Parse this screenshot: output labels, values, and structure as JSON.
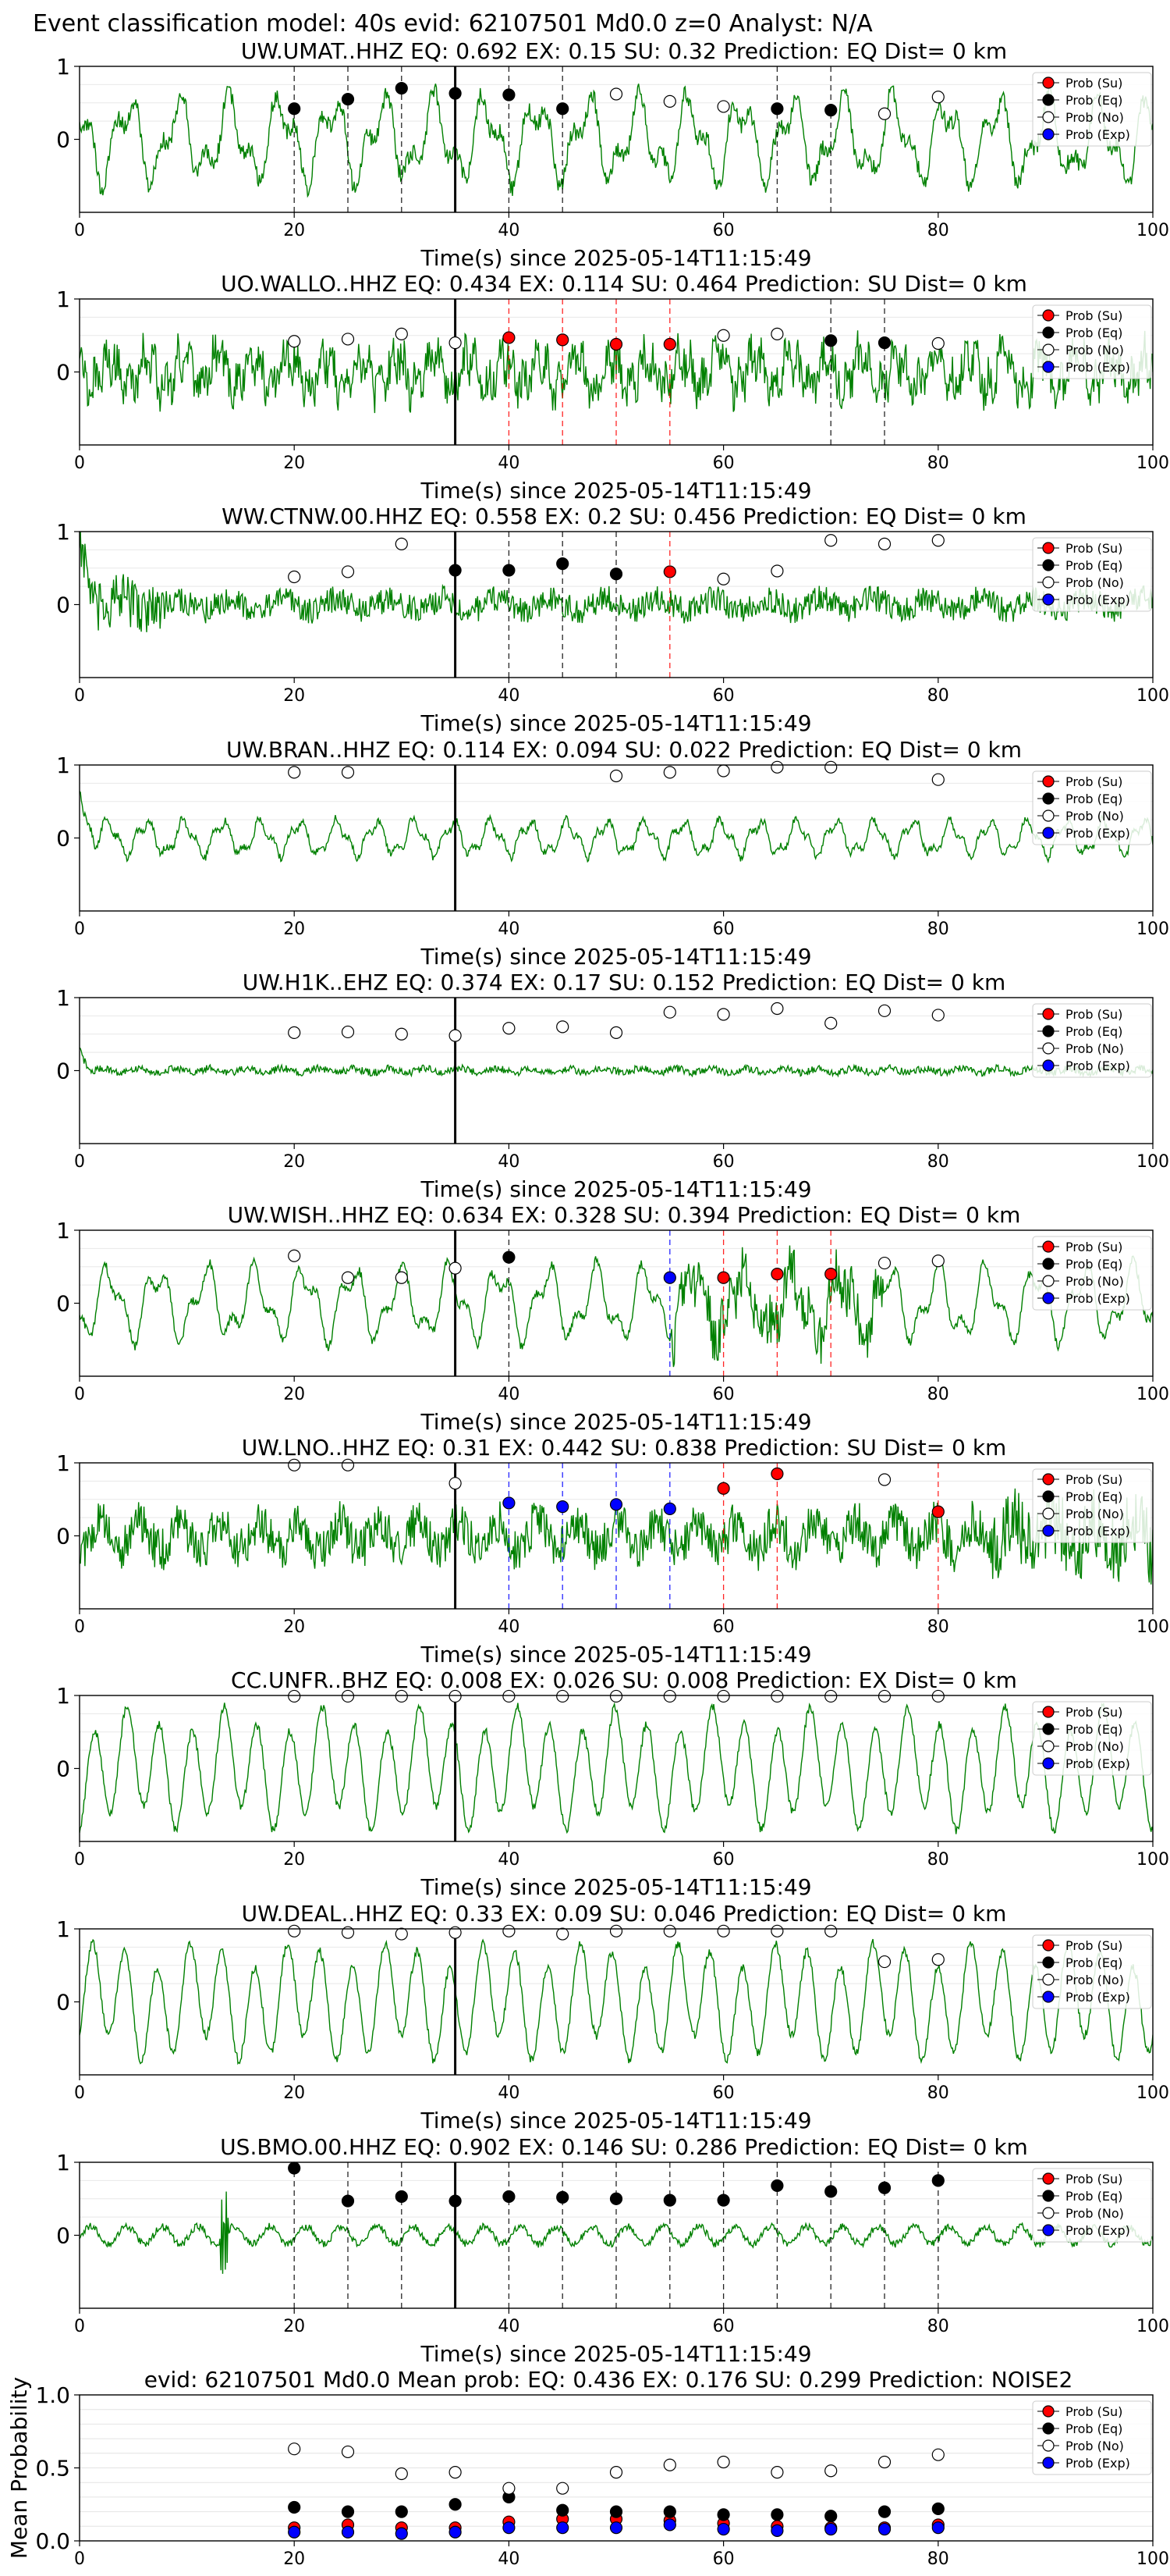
{
  "header": {
    "title": "Event classification model: 40s evid: 62107501 Md0.0 z=0 Analyst: N/A"
  },
  "colors": {
    "su": "#ff0000",
    "eq": "#000000",
    "no": "#ffffff",
    "exp": "#0000ff",
    "waveform": "#008000",
    "pick": "#000000"
  },
  "legend": [
    "Prob (Su)",
    "Prob (Eq)",
    "Prob (No)",
    "Prob (Exp)"
  ],
  "chart_data": [
    {
      "type": "line",
      "title": "UW.UMAT..HHZ   EQ: 0.692  EX: 0.15  SU: 0.32   Prediction: EQ    Dist= 0 km",
      "xlabel": "Time(s) since 2025-05-14T11:15:49",
      "xlim": [
        0,
        100
      ],
      "ylim": [
        -1,
        1
      ],
      "xticks": [
        0,
        20,
        40,
        60,
        80,
        100
      ],
      "yticks": [
        1,
        0
      ],
      "pick_time": 35,
      "legend_position": "upper right",
      "waveform": {
        "color": "green",
        "character": "lowfreq"
      },
      "points": [
        {
          "t": 20,
          "cls": "eq",
          "p": 0.42
        },
        {
          "t": 25,
          "cls": "eq",
          "p": 0.55
        },
        {
          "t": 30,
          "cls": "eq",
          "p": 0.7
        },
        {
          "t": 35,
          "cls": "eq",
          "p": 0.63
        },
        {
          "t": 40,
          "cls": "eq",
          "p": 0.61
        },
        {
          "t": 45,
          "cls": "eq",
          "p": 0.42
        },
        {
          "t": 50,
          "cls": "no",
          "p": 0.62
        },
        {
          "t": 55,
          "cls": "no",
          "p": 0.52
        },
        {
          "t": 60,
          "cls": "no",
          "p": 0.45
        },
        {
          "t": 65,
          "cls": "eq",
          "p": 0.42
        },
        {
          "t": 70,
          "cls": "eq",
          "p": 0.4
        },
        {
          "t": 75,
          "cls": "no",
          "p": 0.35
        },
        {
          "t": 80,
          "cls": "no",
          "p": 0.58
        }
      ]
    },
    {
      "type": "line",
      "title": "UO.WALLO..HHZ   EQ: 0.434  EX: 0.114  SU: 0.464   Prediction: SU    Dist= 0 km",
      "xlabel": "Time(s) since 2025-05-14T11:15:49",
      "xlim": [
        0,
        100
      ],
      "ylim": [
        -1,
        1
      ],
      "xticks": [
        0,
        20,
        40,
        60,
        80,
        100
      ],
      "yticks": [
        1,
        0
      ],
      "pick_time": 35,
      "legend_position": "upper right",
      "waveform": {
        "color": "green",
        "character": "mixed"
      },
      "points": [
        {
          "t": 20,
          "cls": "no",
          "p": 0.42
        },
        {
          "t": 25,
          "cls": "no",
          "p": 0.45
        },
        {
          "t": 30,
          "cls": "no",
          "p": 0.52
        },
        {
          "t": 35,
          "cls": "no",
          "p": 0.4
        },
        {
          "t": 40,
          "cls": "su",
          "p": 0.47
        },
        {
          "t": 45,
          "cls": "su",
          "p": 0.44
        },
        {
          "t": 50,
          "cls": "su",
          "p": 0.38
        },
        {
          "t": 55,
          "cls": "su",
          "p": 0.38
        },
        {
          "t": 60,
          "cls": "no",
          "p": 0.5
        },
        {
          "t": 65,
          "cls": "no",
          "p": 0.52
        },
        {
          "t": 70,
          "cls": "eq",
          "p": 0.43
        },
        {
          "t": 75,
          "cls": "eq",
          "p": 0.4
        },
        {
          "t": 80,
          "cls": "no",
          "p": 0.39
        }
      ]
    },
    {
      "type": "line",
      "title": "WW.CTNW.00.HHZ   EQ: 0.558  EX: 0.2  SU: 0.456   Prediction: EQ    Dist= 0 km",
      "xlabel": "Time(s) since 2025-05-14T11:15:49",
      "xlim": [
        0,
        100
      ],
      "ylim": [
        -1,
        1
      ],
      "xticks": [
        0,
        20,
        40,
        60,
        80,
        100
      ],
      "yticks": [
        1,
        0
      ],
      "pick_time": 35,
      "legend_position": "upper right",
      "waveform": {
        "color": "green",
        "character": "noise"
      },
      "points": [
        {
          "t": 20,
          "cls": "no",
          "p": 0.38
        },
        {
          "t": 25,
          "cls": "no",
          "p": 0.45
        },
        {
          "t": 30,
          "cls": "no",
          "p": 0.83
        },
        {
          "t": 35,
          "cls": "eq",
          "p": 0.47
        },
        {
          "t": 40,
          "cls": "eq",
          "p": 0.47
        },
        {
          "t": 45,
          "cls": "eq",
          "p": 0.56
        },
        {
          "t": 50,
          "cls": "eq",
          "p": 0.42
        },
        {
          "t": 55,
          "cls": "su",
          "p": 0.45
        },
        {
          "t": 60,
          "cls": "no",
          "p": 0.35
        },
        {
          "t": 65,
          "cls": "no",
          "p": 0.46
        },
        {
          "t": 70,
          "cls": "no",
          "p": 0.88
        },
        {
          "t": 75,
          "cls": "no",
          "p": 0.83
        },
        {
          "t": 80,
          "cls": "no",
          "p": 0.88
        }
      ]
    },
    {
      "type": "line",
      "title": "UW.BRAN..HHZ   EQ: 0.114  EX: 0.094  SU: 0.022   Prediction: EQ    Dist= 0 km",
      "xlabel": "Time(s) since 2025-05-14T11:15:49",
      "xlim": [
        0,
        100
      ],
      "ylim": [
        -1,
        1
      ],
      "xticks": [
        0,
        20,
        40,
        60,
        80,
        100
      ],
      "yticks": [
        1,
        0
      ],
      "pick_time": 35,
      "legend_position": "upper right",
      "waveform": {
        "color": "green",
        "character": "lowfreq-small"
      },
      "points": [
        {
          "t": 20,
          "cls": "no",
          "p": 0.9
        },
        {
          "t": 25,
          "cls": "no",
          "p": 0.9
        },
        {
          "t": 50,
          "cls": "no",
          "p": 0.85
        },
        {
          "t": 55,
          "cls": "no",
          "p": 0.9
        },
        {
          "t": 60,
          "cls": "no",
          "p": 0.92
        },
        {
          "t": 65,
          "cls": "no",
          "p": 0.97
        },
        {
          "t": 70,
          "cls": "no",
          "p": 0.97
        },
        {
          "t": 80,
          "cls": "no",
          "p": 0.8
        }
      ]
    },
    {
      "type": "line",
      "title": "UW.H1K..EHZ   EQ: 0.374  EX: 0.17  SU: 0.152   Prediction: EQ    Dist= 0 km",
      "xlabel": "Time(s) since 2025-05-14T11:15:49",
      "xlim": [
        0,
        100
      ],
      "ylim": [
        -1,
        1
      ],
      "xticks": [
        0,
        20,
        40,
        60,
        80,
        100
      ],
      "yticks": [
        1,
        0
      ],
      "pick_time": 35,
      "legend_position": "upper right",
      "waveform": {
        "color": "green",
        "character": "flat"
      },
      "points": [
        {
          "t": 20,
          "cls": "no",
          "p": 0.52
        },
        {
          "t": 25,
          "cls": "no",
          "p": 0.53
        },
        {
          "t": 30,
          "cls": "no",
          "p": 0.5
        },
        {
          "t": 35,
          "cls": "no",
          "p": 0.48
        },
        {
          "t": 40,
          "cls": "no",
          "p": 0.58
        },
        {
          "t": 45,
          "cls": "no",
          "p": 0.6
        },
        {
          "t": 50,
          "cls": "no",
          "p": 0.52
        },
        {
          "t": 55,
          "cls": "no",
          "p": 0.8
        },
        {
          "t": 60,
          "cls": "no",
          "p": 0.77
        },
        {
          "t": 65,
          "cls": "no",
          "p": 0.85
        },
        {
          "t": 70,
          "cls": "no",
          "p": 0.65
        },
        {
          "t": 75,
          "cls": "no",
          "p": 0.82
        },
        {
          "t": 80,
          "cls": "no",
          "p": 0.76
        }
      ]
    },
    {
      "type": "line",
      "title": "UW.WISH..HHZ   EQ: 0.634  EX: 0.328  SU: 0.394   Prediction: EQ    Dist= 0 km",
      "xlabel": "Time(s) since 2025-05-14T11:15:49",
      "xlim": [
        0,
        100
      ],
      "ylim": [
        -1,
        1
      ],
      "xticks": [
        0,
        20,
        40,
        60,
        80,
        100
      ],
      "yticks": [
        1,
        0
      ],
      "pick_time": 35,
      "legend_position": "upper right",
      "waveform": {
        "color": "green",
        "character": "lowfreq-burst"
      },
      "points": [
        {
          "t": 20,
          "cls": "no",
          "p": 0.65
        },
        {
          "t": 25,
          "cls": "no",
          "p": 0.35
        },
        {
          "t": 30,
          "cls": "no",
          "p": 0.35
        },
        {
          "t": 35,
          "cls": "no",
          "p": 0.48
        },
        {
          "t": 40,
          "cls": "eq",
          "p": 0.63
        },
        {
          "t": 55,
          "cls": "exp",
          "p": 0.35
        },
        {
          "t": 60,
          "cls": "su",
          "p": 0.35
        },
        {
          "t": 65,
          "cls": "su",
          "p": 0.4
        },
        {
          "t": 70,
          "cls": "su",
          "p": 0.4
        },
        {
          "t": 75,
          "cls": "no",
          "p": 0.55
        },
        {
          "t": 80,
          "cls": "no",
          "p": 0.58
        }
      ]
    },
    {
      "type": "line",
      "title": "UW.LNO..HHZ   EQ: 0.31  EX: 0.442  SU: 0.838   Prediction: SU    Dist= 0 km",
      "xlabel": "Time(s) since 2025-05-14T11:15:49",
      "xlim": [
        0,
        100
      ],
      "ylim": [
        -1,
        1
      ],
      "xticks": [
        0,
        20,
        40,
        60,
        80,
        100
      ],
      "yticks": [
        1,
        0
      ],
      "pick_time": 35,
      "legend_position": "upper right",
      "waveform": {
        "color": "green",
        "character": "mixed-strong"
      },
      "points": [
        {
          "t": 20,
          "cls": "no",
          "p": 0.97
        },
        {
          "t": 25,
          "cls": "no",
          "p": 0.97
        },
        {
          "t": 35,
          "cls": "no",
          "p": 0.72
        },
        {
          "t": 40,
          "cls": "exp",
          "p": 0.45
        },
        {
          "t": 45,
          "cls": "exp",
          "p": 0.4
        },
        {
          "t": 50,
          "cls": "exp",
          "p": 0.43
        },
        {
          "t": 55,
          "cls": "exp",
          "p": 0.37
        },
        {
          "t": 60,
          "cls": "su",
          "p": 0.65
        },
        {
          "t": 65,
          "cls": "su",
          "p": 0.85
        },
        {
          "t": 75,
          "cls": "no",
          "p": 0.77
        },
        {
          "t": 80,
          "cls": "su",
          "p": 0.33
        }
      ]
    },
    {
      "type": "line",
      "title": "CC.UNFR..BHZ   EQ: 0.008  EX: 0.026  SU: 0.008   Prediction: EX    Dist= 0 km",
      "xlabel": "Time(s) since 2025-05-14T11:15:49",
      "xlim": [
        0,
        100
      ],
      "ylim": [
        -1,
        1
      ],
      "xticks": [
        0,
        20,
        40,
        60,
        80,
        100
      ],
      "yticks": [
        1,
        0
      ],
      "pick_time": 35,
      "legend_position": "upper right",
      "waveform": {
        "color": "green",
        "character": "lowfreq-large"
      },
      "points": [
        {
          "t": 20,
          "cls": "no",
          "p": 0.99
        },
        {
          "t": 25,
          "cls": "no",
          "p": 0.99
        },
        {
          "t": 30,
          "cls": "no",
          "p": 0.99
        },
        {
          "t": 35,
          "cls": "no",
          "p": 0.99
        },
        {
          "t": 40,
          "cls": "no",
          "p": 0.99
        },
        {
          "t": 45,
          "cls": "no",
          "p": 0.99
        },
        {
          "t": 50,
          "cls": "no",
          "p": 0.99
        },
        {
          "t": 55,
          "cls": "no",
          "p": 0.99
        },
        {
          "t": 60,
          "cls": "no",
          "p": 0.99
        },
        {
          "t": 65,
          "cls": "no",
          "p": 0.99
        },
        {
          "t": 70,
          "cls": "no",
          "p": 0.99
        },
        {
          "t": 75,
          "cls": "no",
          "p": 0.99
        },
        {
          "t": 80,
          "cls": "no",
          "p": 0.99
        }
      ]
    },
    {
      "type": "line",
      "title": "UW.DEAL..HHZ   EQ: 0.33  EX: 0.09  SU: 0.046   Prediction: EQ    Dist= 0 km",
      "xlabel": "Time(s) since 2025-05-14T11:15:49",
      "xlim": [
        0,
        100
      ],
      "ylim": [
        -1,
        1
      ],
      "xticks": [
        0,
        20,
        40,
        60,
        80,
        100
      ],
      "yticks": [
        1,
        0
      ],
      "pick_time": 35,
      "legend_position": "upper right",
      "waveform": {
        "color": "green",
        "character": "lowfreq-large"
      },
      "points": [
        {
          "t": 20,
          "cls": "no",
          "p": 0.97
        },
        {
          "t": 25,
          "cls": "no",
          "p": 0.95
        },
        {
          "t": 30,
          "cls": "no",
          "p": 0.93
        },
        {
          "t": 35,
          "cls": "no",
          "p": 0.95
        },
        {
          "t": 40,
          "cls": "no",
          "p": 0.97
        },
        {
          "t": 45,
          "cls": "no",
          "p": 0.93
        },
        {
          "t": 50,
          "cls": "no",
          "p": 0.97
        },
        {
          "t": 55,
          "cls": "no",
          "p": 0.97
        },
        {
          "t": 60,
          "cls": "no",
          "p": 0.97
        },
        {
          "t": 65,
          "cls": "no",
          "p": 0.97
        },
        {
          "t": 70,
          "cls": "no",
          "p": 0.97
        },
        {
          "t": 75,
          "cls": "no",
          "p": 0.55
        },
        {
          "t": 80,
          "cls": "no",
          "p": 0.58
        }
      ]
    },
    {
      "type": "line",
      "title": "US.BMO.00.HHZ   EQ: 0.902  EX: 0.146  SU: 0.286   Prediction: EQ    Dist= 0 km",
      "xlabel": "Time(s) since 2025-05-14T11:15:49",
      "xlim": [
        0,
        100
      ],
      "ylim": [
        -1,
        1
      ],
      "xticks": [
        0,
        20,
        40,
        60,
        80,
        100
      ],
      "yticks": [
        1,
        0
      ],
      "pick_time": 35,
      "legend_position": "upper right",
      "waveform": {
        "color": "green",
        "character": "lowfreq-small-spike"
      },
      "points": [
        {
          "t": 20,
          "cls": "eq",
          "p": 0.92
        },
        {
          "t": 25,
          "cls": "eq",
          "p": 0.47
        },
        {
          "t": 30,
          "cls": "eq",
          "p": 0.53
        },
        {
          "t": 35,
          "cls": "eq",
          "p": 0.47
        },
        {
          "t": 40,
          "cls": "eq",
          "p": 0.53
        },
        {
          "t": 45,
          "cls": "eq",
          "p": 0.52
        },
        {
          "t": 50,
          "cls": "eq",
          "p": 0.5
        },
        {
          "t": 55,
          "cls": "eq",
          "p": 0.48
        },
        {
          "t": 60,
          "cls": "eq",
          "p": 0.48
        },
        {
          "t": 65,
          "cls": "eq",
          "p": 0.68
        },
        {
          "t": 70,
          "cls": "eq",
          "p": 0.6
        },
        {
          "t": 75,
          "cls": "eq",
          "p": 0.65
        },
        {
          "t": 80,
          "cls": "eq",
          "p": 0.75
        }
      ]
    },
    {
      "type": "scatter",
      "title": "evid: 62107501  Md0.0   Mean prob:   EQ: 0.436  EX: 0.176  SU: 0.299   Prediction: NOISE2",
      "xlabel": "",
      "ylabel": "Mean Probability",
      "xlim": [
        0,
        100
      ],
      "ylim": [
        0,
        1
      ],
      "xticks": [
        0,
        20,
        40,
        60,
        80,
        100
      ],
      "yticks": [
        0.0,
        0.5,
        1.0
      ],
      "yticklabels": [
        "0.0",
        "0.5",
        "1.0"
      ],
      "grid": true,
      "legend_position": "upper right",
      "x": [
        20,
        25,
        30,
        35,
        40,
        45,
        50,
        55,
        60,
        65,
        70,
        75,
        80
      ],
      "series": [
        {
          "name": "Prob (Su)",
          "cls": "su",
          "values": [
            0.09,
            0.11,
            0.09,
            0.09,
            0.13,
            0.15,
            0.15,
            0.14,
            0.12,
            0.1,
            0.09,
            0.09,
            0.11
          ]
        },
        {
          "name": "Prob (Eq)",
          "cls": "eq",
          "values": [
            0.23,
            0.2,
            0.2,
            0.25,
            0.3,
            0.21,
            0.2,
            0.2,
            0.18,
            0.18,
            0.17,
            0.2,
            0.22
          ]
        },
        {
          "name": "Prob (No)",
          "cls": "no",
          "values": [
            0.63,
            0.61,
            0.46,
            0.47,
            0.36,
            0.36,
            0.47,
            0.52,
            0.54,
            0.47,
            0.48,
            0.54,
            0.59
          ]
        },
        {
          "name": "Prob (Exp)",
          "cls": "exp",
          "values": [
            0.06,
            0.06,
            0.05,
            0.06,
            0.09,
            0.09,
            0.09,
            0.11,
            0.08,
            0.07,
            0.08,
            0.08,
            0.09
          ]
        }
      ]
    }
  ]
}
